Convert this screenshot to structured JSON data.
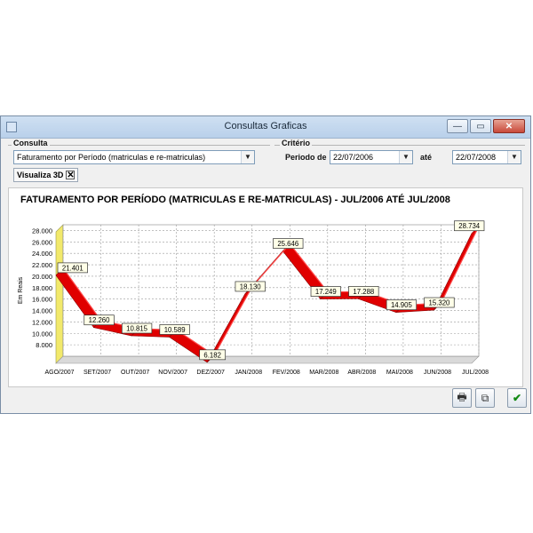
{
  "window": {
    "title": "Consultas Graficas"
  },
  "consulta": {
    "label": "Consulta",
    "selected": "Faturamento por Período (matriculas e re-matriculas)",
    "checkbox_label": "Visualiza 3D",
    "checkbox_mark": "✕"
  },
  "criterio": {
    "label": "Critério",
    "periodo_label": "Periodo de",
    "date_from": "22/07/2006",
    "ate_label": "até",
    "date_to": "22/07/2008"
  },
  "chart_data": {
    "type": "line",
    "title": "FATURAMENTO POR PERÍODO (MATRICULAS E RE-MATRICULAS) - JUL/2006 ATÉ JUL/2008",
    "ylabel": "Em Reais",
    "xlabel": "",
    "categories": [
      "AGO/2007",
      "SET/2007",
      "OUT/2007",
      "NOV/2007",
      "DEZ/2007",
      "JAN/2008",
      "FEV/2008",
      "MAR/2008",
      "ABR/2008",
      "MAI/2008",
      "JUN/2008",
      "JUL/2008"
    ],
    "values": [
      21401,
      12260,
      10815,
      10589,
      6182,
      18130,
      25646,
      17249,
      17288,
      14905,
      15320,
      28734
    ],
    "value_labels": [
      "21.401",
      "12.260",
      "10.815",
      "10.589",
      "6.182",
      "18.130",
      "25.646",
      "17.249",
      "17.288",
      "14.905",
      "15.320",
      "28.734"
    ],
    "yticks": [
      "8.000",
      "10.000",
      "12.000",
      "14.000",
      "16.000",
      "18.000",
      "20.000",
      "22.000",
      "24.000",
      "26.000",
      "28.000"
    ],
    "ylim": [
      6000,
      29000
    ],
    "grid": true,
    "series_color": "#e00000",
    "view_3d": true
  },
  "toolbar": {
    "print_icon": "printer-icon",
    "copy_icon": "copy-icon",
    "ok_icon": "check-icon"
  }
}
